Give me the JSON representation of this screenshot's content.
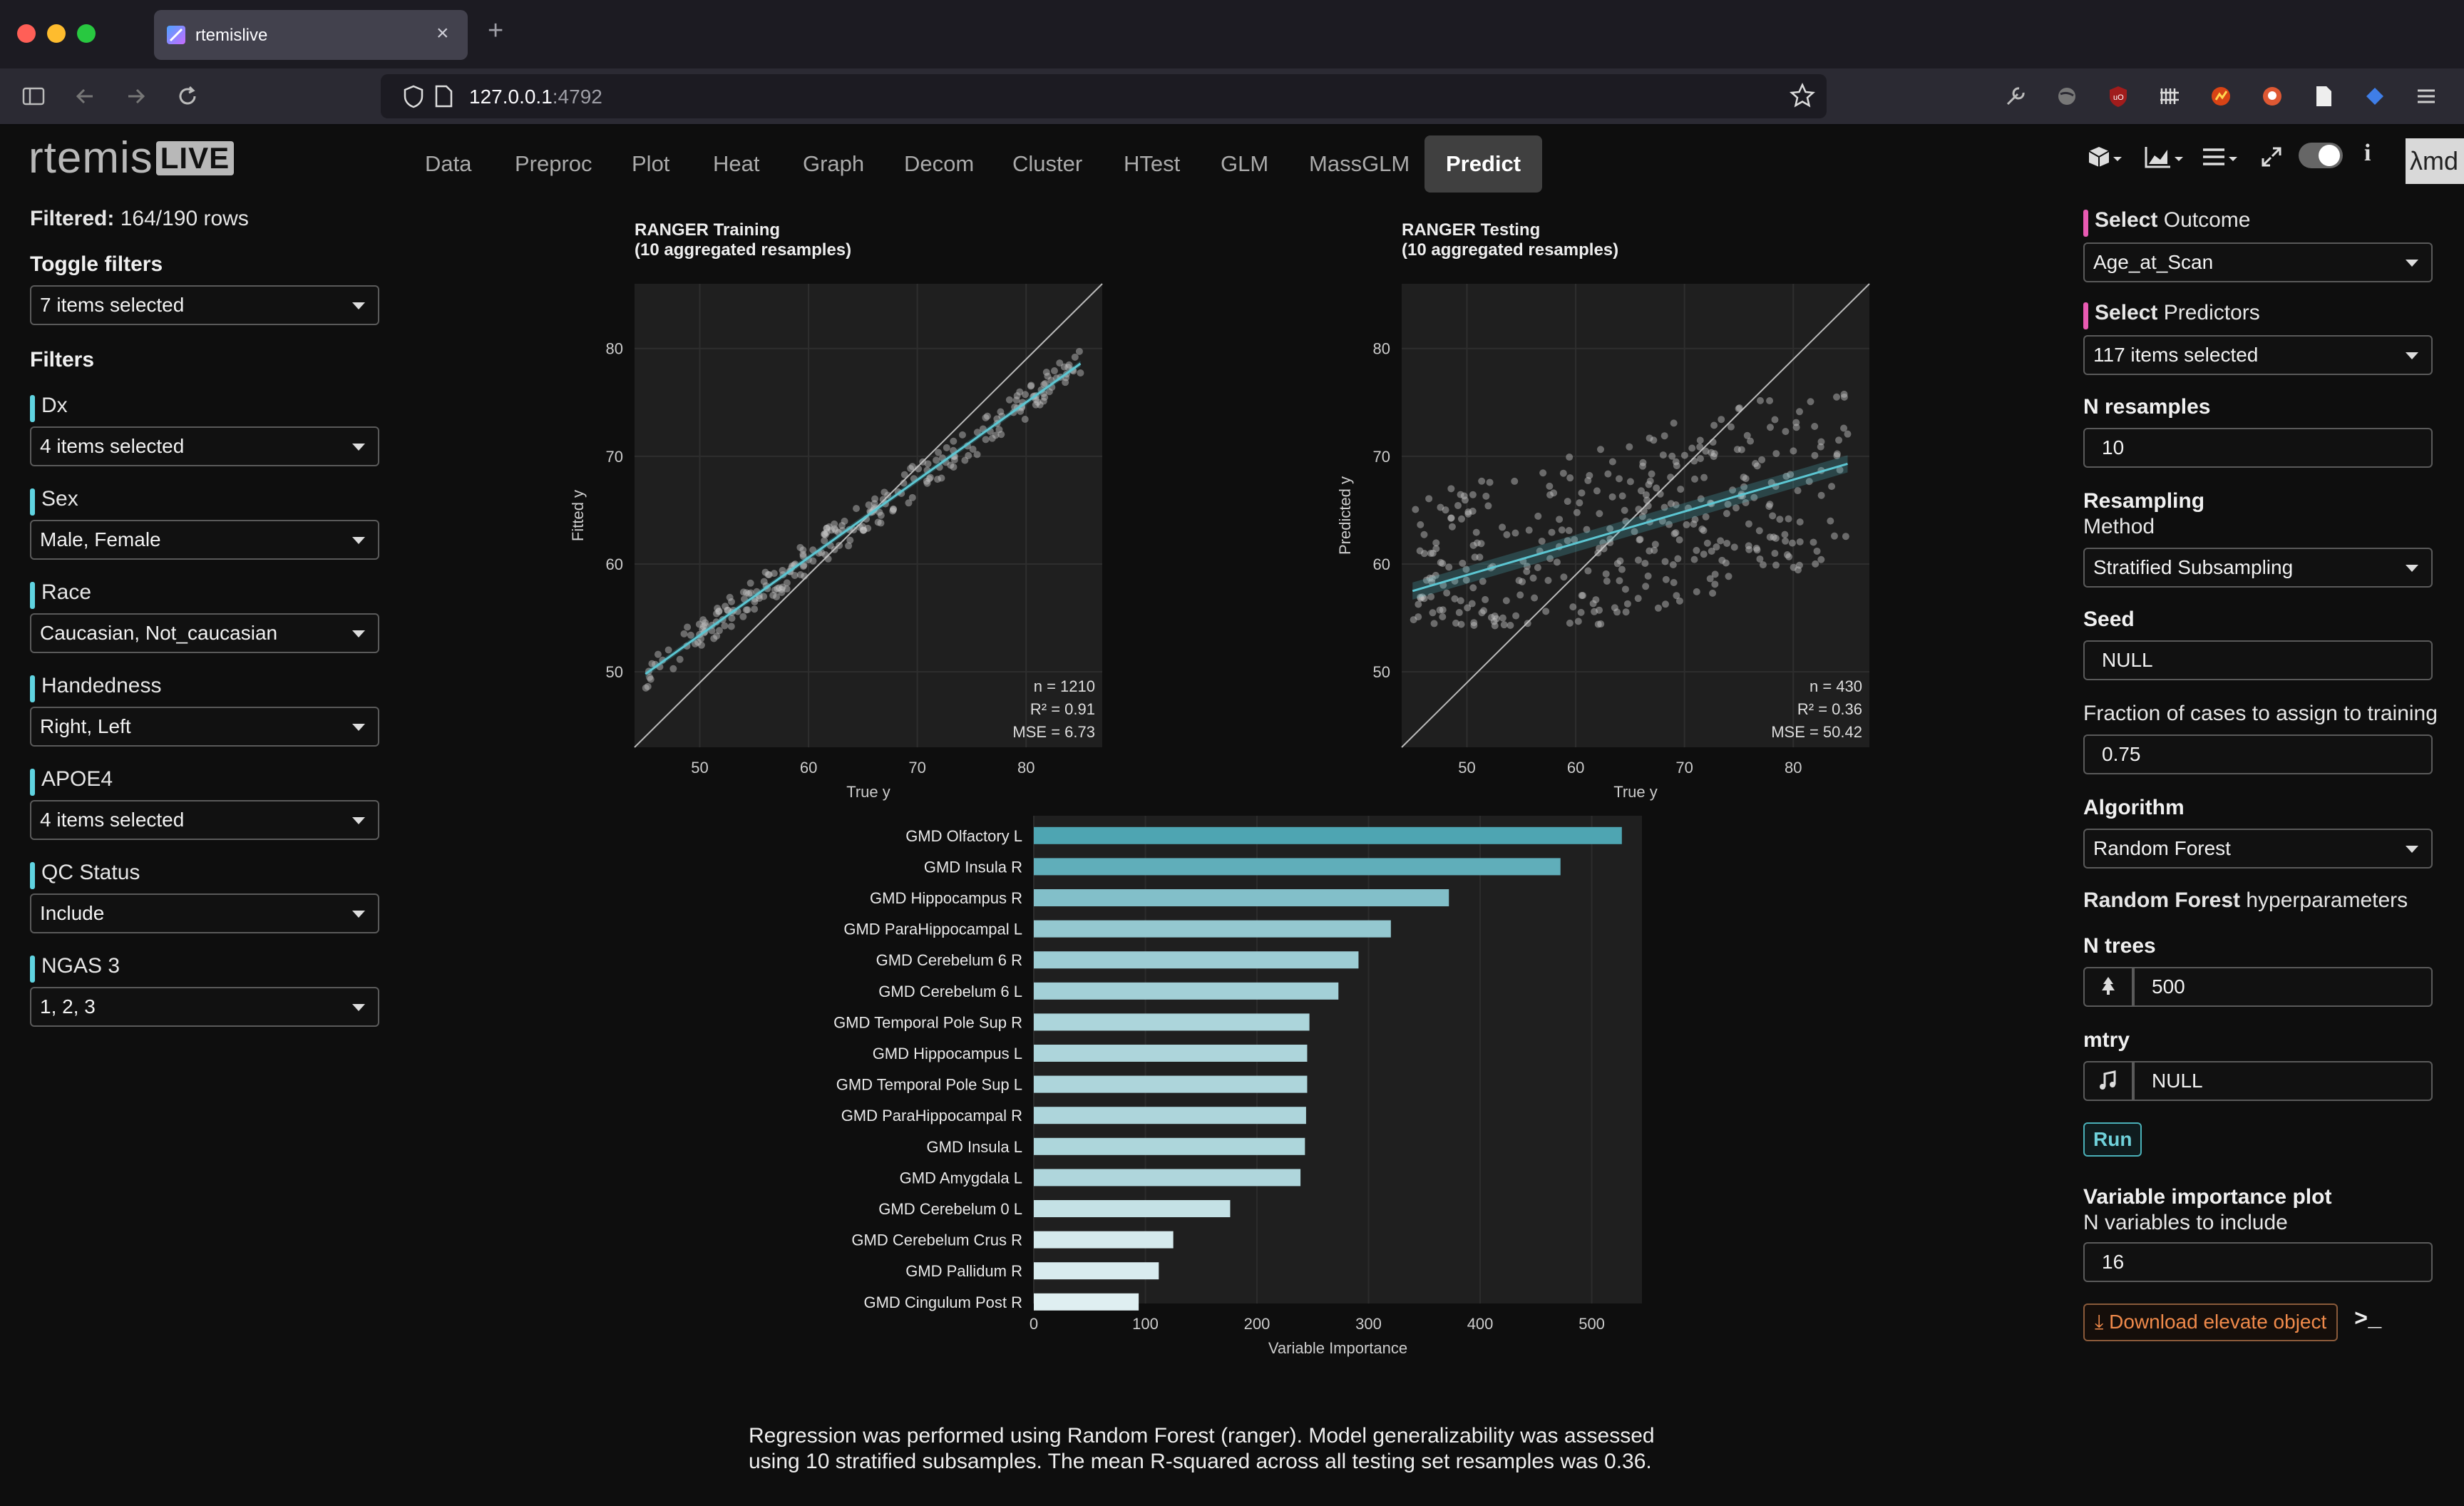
{
  "browser": {
    "tab_title": "rtemislive",
    "url_host": "127.0.0.1",
    "url_port": ":4792"
  },
  "app": {
    "logo_main": "rtemis",
    "logo_badge": "LIVE",
    "nav_tabs": [
      "Data",
      "Preproc",
      "Plot",
      "Heat",
      "Graph",
      "Decom",
      "Cluster",
      "HTest",
      "GLM",
      "MassGLM",
      "Predict"
    ],
    "active_tab": "Predict",
    "corner_logo": "λmd"
  },
  "left": {
    "filtered_label": "Filtered:",
    "filtered_value": "164/190 rows",
    "toggle_filters_label": "Toggle filters",
    "toggle_filters_value": "7 items selected",
    "filters_label": "Filters",
    "filters": [
      {
        "label": "Dx",
        "value": "4 items selected"
      },
      {
        "label": "Sex",
        "value": "Male, Female"
      },
      {
        "label": "Race",
        "value": "Caucasian, Not_caucasian"
      },
      {
        "label": "Handedness",
        "value": "Right, Left"
      },
      {
        "label": "APOE4",
        "value": "4 items selected"
      },
      {
        "label": "QC Status",
        "value": "Include"
      },
      {
        "label": "NGAS 3",
        "value": "1, 2, 3"
      }
    ]
  },
  "right": {
    "select_word": "Select",
    "outcome_label": "Outcome",
    "outcome_value": "Age_at_Scan",
    "predictors_label": "Predictors",
    "predictors_value": "117 items selected",
    "nresamples_label": "N resamples",
    "nresamples_value": "10",
    "resampling_label": "Resampling",
    "method_label": "Method",
    "method_value": "Stratified Subsampling",
    "seed_label": "Seed",
    "seed_value": "NULL",
    "fraction_label": "Fraction of cases to assign to training",
    "fraction_value": "0.75",
    "algorithm_label": "Algorithm",
    "algorithm_value": "Random Forest",
    "hyper_bold": "Random Forest",
    "hyper_rest": "hyperparameters",
    "ntrees_label": "N trees",
    "ntrees_value": "500",
    "mtry_label": "mtry",
    "mtry_value": "NULL",
    "run_label": "Run",
    "varimp_label": "Variable importance plot",
    "nvars_label": "N variables to include",
    "nvars_value": "16",
    "download_label": "Download elevate object",
    "console_label": ">_"
  },
  "summary": "Regression was performed using Random Forest (ranger). Model generalizability was assessed using 10 stratified subsamples. The mean R-squared across all testing set resamples was 0.36.",
  "chart_data": [
    {
      "type": "scatter",
      "title": "RANGER Training",
      "subtitle": "(10 aggregated resamples)",
      "xlabel": "True y",
      "ylabel": "Fitted y",
      "xticks": [
        50,
        60,
        70,
        80
      ],
      "yticks": [
        50,
        60,
        70,
        80
      ],
      "xlim": [
        44,
        87
      ],
      "ylim": [
        43,
        86
      ],
      "stats": [
        "n = 1210",
        "R² = 0.91",
        "MSE = 6.73"
      ],
      "fit_line": {
        "x": [
          45,
          85
        ],
        "y": [
          49.8,
          78.6
        ]
      },
      "points_summary": {
        "n": 1210,
        "pattern": "tight band along fit line from (45,50) to (85,79)"
      }
    },
    {
      "type": "scatter",
      "title": "RANGER Testing",
      "subtitle": "(10 aggregated resamples)",
      "xlabel": "True y",
      "ylabel": "Predicted y",
      "xticks": [
        50,
        60,
        70,
        80
      ],
      "yticks": [
        50,
        60,
        70,
        80
      ],
      "xlim": [
        44,
        87
      ],
      "ylim": [
        43,
        86
      ],
      "stats": [
        "n = 430",
        "R² = 0.36",
        "MSE = 50.42"
      ],
      "fit_line": {
        "x": [
          45,
          85
        ],
        "y": [
          57.5,
          69.3
        ]
      },
      "points_summary": {
        "n": 430,
        "pattern": "wide scatter between y 55 and 75"
      }
    },
    {
      "type": "bar",
      "orientation": "horizontal",
      "xlabel": "Variable Importance",
      "xticks": [
        0,
        100,
        200,
        300,
        400,
        500
      ],
      "xlim": [
        0,
        545
      ],
      "categories": [
        "GMD Olfactory L",
        "GMD Insula R",
        "GMD Hippocampus R",
        "GMD ParaHippocampal L",
        "GMD Cerebelum 6 R",
        "GMD Cerebelum 6 L",
        "GMD Temporal Pole Sup R",
        "GMD Hippocampus L",
        "GMD Temporal Pole Sup L",
        "GMD ParaHippocampal R",
        "GMD Insula L",
        "GMD Amygdala L",
        "GMD Cerebelum 0 L",
        "GMD Cerebelum Crus R",
        "GMD Pallidum R",
        "GMD Cingulum Post R"
      ],
      "values": [
        527,
        472,
        372,
        320,
        291,
        273,
        247,
        245,
        245,
        244,
        243,
        239,
        176,
        125,
        112,
        94
      ]
    }
  ]
}
